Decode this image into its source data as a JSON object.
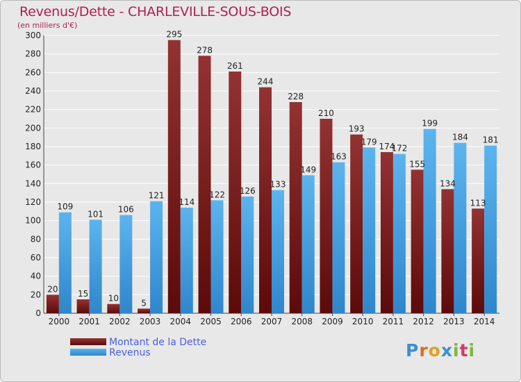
{
  "header": {
    "title": "Revenus/Dette - CHARLEVILLE-SOUS-BOIS",
    "subtitle": "(en milliers d'€)"
  },
  "logo": {
    "text": "Proxiti",
    "letters": [
      "P",
      "r",
      "o",
      "x",
      "i",
      "t",
      "i"
    ],
    "letter_colors": [
      "#3a8fd6",
      "#e06a1e",
      "#e0a020",
      "#3a8fd6",
      "#7cb83a",
      "#d03a6a",
      "#7cb83a"
    ]
  },
  "colors": {
    "background": "#e8e8e8",
    "grid": "#ffffff",
    "dette": "#7a1515",
    "revenus": "#4ea5e6",
    "title": "#b0204e",
    "legend_text": "#4a5fe0"
  },
  "chart_data": {
    "type": "bar",
    "title": "Revenus/Dette - CHARLEVILLE-SOUS-BOIS",
    "subtitle": "(en milliers d'€)",
    "categories": [
      "2000",
      "2001",
      "2002",
      "2003",
      "2004",
      "2005",
      "2006",
      "2007",
      "2008",
      "2009",
      "2010",
      "2011",
      "2012",
      "2013",
      "2014"
    ],
    "series": [
      {
        "name": "Montant de la Dette",
        "values": [
          20,
          15,
          10,
          5,
          295,
          278,
          261,
          244,
          228,
          210,
          193,
          174,
          155,
          134,
          113
        ]
      },
      {
        "name": "Revenus",
        "values": [
          109,
          101,
          106,
          121,
          114,
          122,
          126,
          133,
          149,
          163,
          179,
          172,
          199,
          184,
          181
        ]
      }
    ],
    "ylim": [
      0,
      300
    ],
    "yticks": [
      0,
      20,
      40,
      60,
      80,
      100,
      120,
      140,
      160,
      180,
      200,
      220,
      240,
      260,
      280,
      300
    ],
    "grid": true,
    "legend_position": "bottom-left"
  }
}
